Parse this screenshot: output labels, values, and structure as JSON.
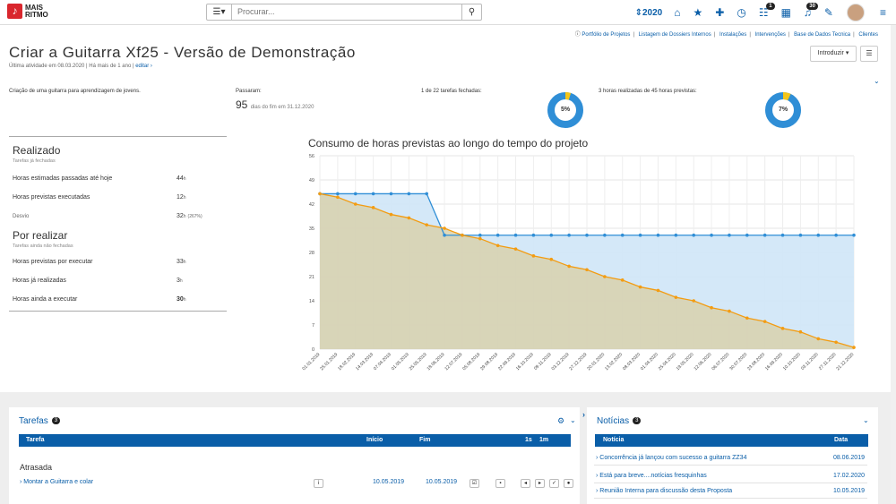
{
  "header": {
    "logo_line1": "MAIS",
    "logo_line2": "RITMO",
    "search_placeholder": "Procurar...",
    "year": "2020",
    "badges": {
      "tasks": "1",
      "notifications": "30"
    }
  },
  "links": [
    "Portfólio de Projetos",
    "Listagem de Dossiers Internos",
    "Instalações",
    "Intervenções",
    "Base de Dados Tecnica",
    "Clientes"
  ],
  "page": {
    "title": "Criar a Guitarra Xf25 - Versão de Demonstração",
    "subtitle_text": "Última atividade em 08.03.2020 | Há mais de 1 ano |",
    "subtitle_link": "editar",
    "introduce_button": "Introduzir"
  },
  "summary": {
    "description": "Criação de uma guitarra para aprendizagem de jovens.",
    "passaram_label": "Passaram:",
    "passaram_value": "95",
    "passaram_suffix": "dias do fim em 31.12.2020",
    "tasks_label": "1 de 22 tarefas fechadas:",
    "tasks_pct": "5%",
    "tasks_fraction": 0.05,
    "hours_label": "3 horas realizadas de 45 horas previstas:",
    "hours_pct": "7%",
    "hours_fraction": 0.07
  },
  "realizado": {
    "title": "Realizado",
    "subtitle": "Tarefas já fechadas",
    "rows": [
      {
        "label": "Horas estimadas passadas até hoje",
        "value": "44",
        "unit": "h",
        "extra": ""
      },
      {
        "label": "Horas previstas executadas",
        "value": "12",
        "unit": "h",
        "extra": ""
      },
      {
        "label": "Desvio",
        "value": "32",
        "unit": "h",
        "extra": "(267%)"
      }
    ]
  },
  "por_realizar": {
    "title": "Por realizar",
    "subtitle": "Tarefas ainda não fechadas",
    "rows": [
      {
        "label": "Horas previstas por executar",
        "value": "33",
        "unit": "h"
      },
      {
        "label": "Horas já realizadas",
        "value": "3",
        "unit": "h"
      },
      {
        "label": "Horas ainda a executar",
        "value": "30",
        "unit": "h"
      }
    ]
  },
  "chart_data": {
    "type": "area",
    "title": "Consumo de horas previstas ao longo do tempo do projeto",
    "ylim": [
      0,
      56
    ],
    "yticks": [
      0,
      7,
      14,
      21,
      28,
      35,
      42,
      49,
      56
    ],
    "x": [
      "01.01.2019",
      "25.01.2019",
      "18.02.2019",
      "14.03.2019",
      "07.04.2019",
      "01.05.2019",
      "25.05.2019",
      "18.06.2019",
      "12.07.2019",
      "05.08.2019",
      "29.08.2019",
      "22.09.2019",
      "16.10.2019",
      "09.11.2019",
      "03.12.2019",
      "27.12.2019",
      "20.01.2020",
      "13.02.2020",
      "08.03.2020",
      "01.04.2020",
      "25.04.2020",
      "19.05.2020",
      "12.06.2020",
      "06.07.2020",
      "30.07.2020",
      "23.08.2020",
      "16.09.2020",
      "10.10.2020",
      "03.11.2020",
      "27.11.2020",
      "21.12.2020"
    ],
    "series": [
      {
        "color": "#2f8ed6",
        "values": [
          45,
          45,
          45,
          45,
          45,
          45,
          45,
          33,
          33,
          33,
          33,
          33,
          33,
          33,
          33,
          33,
          33,
          33,
          33,
          33,
          33,
          33,
          33,
          33,
          33,
          33,
          33,
          33,
          33,
          33,
          33
        ]
      },
      {
        "color": "#f39c12",
        "values": [
          45,
          44,
          42,
          41,
          39,
          38,
          36,
          35,
          33,
          32,
          30,
          29,
          27,
          26,
          24,
          23,
          21,
          20,
          18,
          17,
          15,
          14,
          12,
          11,
          9,
          8,
          6,
          5,
          3,
          2,
          0.5
        ]
      }
    ]
  },
  "tarefas": {
    "title": "Tarefas",
    "count": "3",
    "columns": [
      "Tarefa",
      "Início",
      "Fim",
      "1s",
      "1m"
    ],
    "group": "Atrasada",
    "rows": [
      {
        "name": "Montar a Guitarra e colar",
        "start": "10.05.2019",
        "end": "10.05.2019"
      }
    ]
  },
  "noticias": {
    "title": "Notícias",
    "count": "3",
    "columns": [
      "Notícia",
      "Data"
    ],
    "rows": [
      {
        "title": "Concorrência já lançou com sucesso a guitarra ZZ34",
        "date": "08.06.2019"
      },
      {
        "title": "Está para breve....notícias fresquinhas",
        "date": "17.02.2020"
      },
      {
        "title": "Reunião Interna para discussão desta Proposta",
        "date": "10.05.2019"
      }
    ]
  }
}
